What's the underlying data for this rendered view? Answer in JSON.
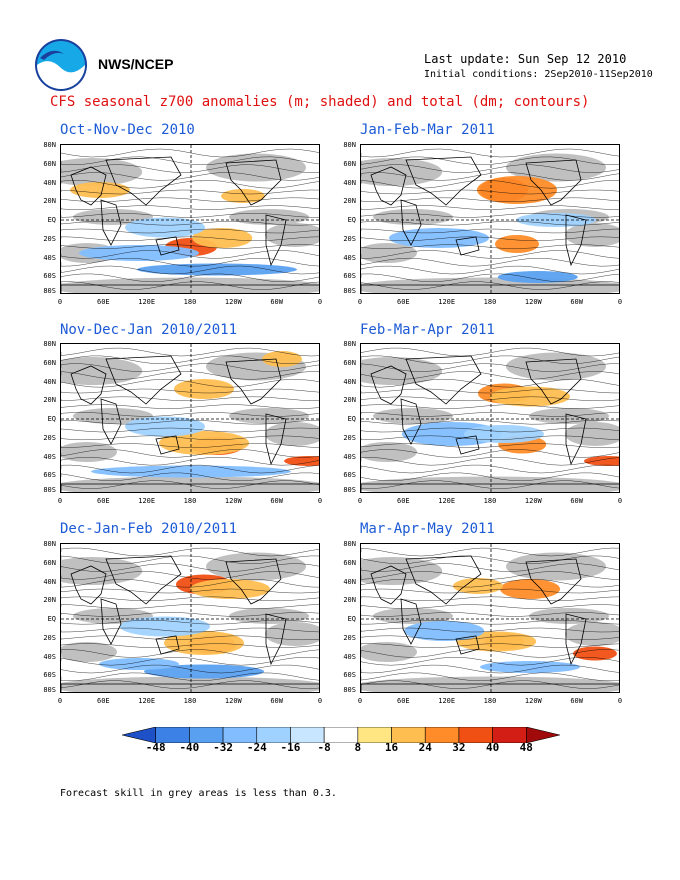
{
  "header": {
    "org": "NWS/NCEP",
    "last_update": "Last update: Sun Sep 12 2010",
    "initial_conditions": "Initial conditions: 2Sep2010-11Sep2010",
    "title": "CFS seasonal z700 anomalies (m; shaded) and total (dm; contours)"
  },
  "panels": [
    {
      "title": "Oct-Nov-Dec 2010"
    },
    {
      "title": "Jan-Feb-Mar 2011"
    },
    {
      "title": "Nov-Dec-Jan 2010/2011"
    },
    {
      "title": "Feb-Mar-Apr 2011"
    },
    {
      "title": "Dec-Jan-Feb 2010/2011"
    },
    {
      "title": "Mar-Apr-May 2011"
    }
  ],
  "axes": {
    "lat_labels": [
      "80N",
      "60N",
      "40N",
      "20N",
      "EQ",
      "20S",
      "40S",
      "60S",
      "80S"
    ],
    "lon_labels": [
      "0",
      "60E",
      "120E",
      "180",
      "120W",
      "60W",
      "0"
    ]
  },
  "colorbar": {
    "labels": [
      "-48",
      "-40",
      "-32",
      "-24",
      "-16",
      "-8",
      "8",
      "16",
      "24",
      "32",
      "40",
      "48"
    ],
    "colors": [
      "#1e50c8",
      "#3c82e6",
      "#5aa0f0",
      "#82beff",
      "#a0d2ff",
      "#c8e6ff",
      "#ffffff",
      "#ffe682",
      "#ffbe50",
      "#ff8c28",
      "#f05014",
      "#d21e14",
      "#a00a0a"
    ]
  },
  "footnote": "Forecast skill in grey areas is less than 0.3.",
  "colors": {
    "title": "#e01010",
    "panel_title": "#1c5ad6",
    "skill_grey": "#c0c0c0"
  }
}
